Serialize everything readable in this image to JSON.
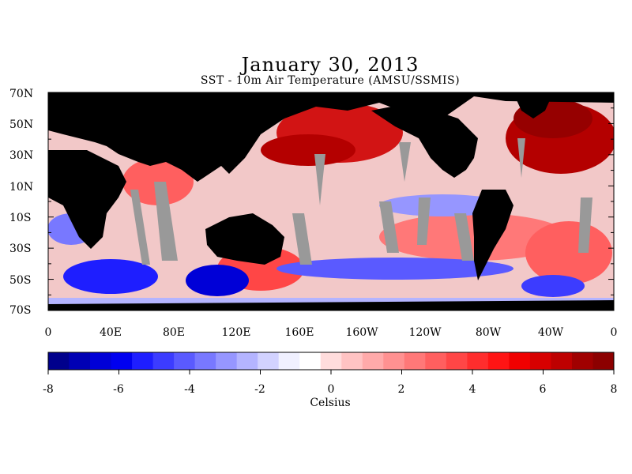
{
  "title": "January 30, 2013",
  "subtitle": "SST - 10m Air Temperature (AMSU/SSMIS)",
  "lat_labels": [
    "70N",
    "50N",
    "30N",
    "10N",
    "10S",
    "30S",
    "50S",
    "70S"
  ],
  "lon_labels": [
    "0",
    "40E",
    "80E",
    "120E",
    "160E",
    "160W",
    "120W",
    "80W",
    "40W",
    "0"
  ],
  "colorbar": {
    "labels": [
      "-8",
      "-6",
      "-4",
      "-2",
      "0",
      "2",
      "4",
      "6",
      "8"
    ],
    "units": "Celsius",
    "range": [
      -8,
      8
    ],
    "colors": [
      "#00008c",
      "#0000b4",
      "#0000d7",
      "#0000f0",
      "#1e1eff",
      "#3c3cff",
      "#5a5aff",
      "#7878ff",
      "#9696ff",
      "#b4b4ff",
      "#d2d2ff",
      "#f0f0ff",
      "#ffffff",
      "#ffdcdc",
      "#ffc3c3",
      "#ffaaaa",
      "#ff9191",
      "#ff7878",
      "#ff5f5f",
      "#ff4646",
      "#ff2d2d",
      "#ff1414",
      "#f00000",
      "#d70000",
      "#be0000",
      "#a00000",
      "#8c0000"
    ]
  },
  "legend_colors": {
    "land": "#000000",
    "no_data": "#999999"
  }
}
